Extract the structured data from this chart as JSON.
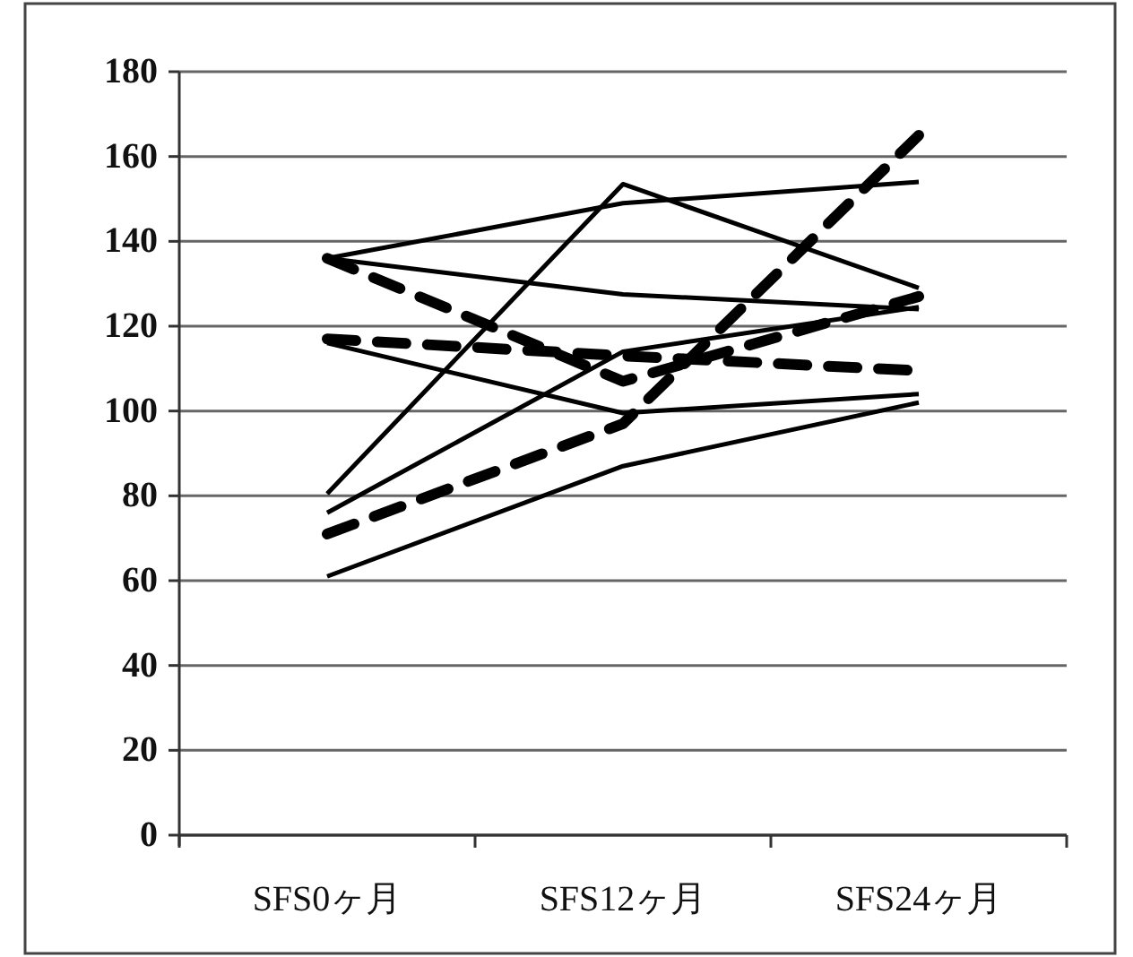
{
  "chart_data": {
    "type": "line",
    "categories": [
      "SFS0ヶ月",
      "SFS12ヶ月",
      "SFS24ヶ月"
    ],
    "ylim": [
      0,
      180
    ],
    "yticks": [
      0,
      20,
      40,
      60,
      80,
      100,
      120,
      140,
      160,
      180
    ],
    "grid": "y",
    "marker": "none",
    "series": [
      {
        "color": "#000000",
        "line_style": "solid",
        "values": [
          136,
          149,
          154
        ]
      },
      {
        "color": "#000000",
        "line_style": "solid",
        "values": [
          136,
          127.5,
          124
        ]
      },
      {
        "color": "#000000",
        "line_style": "solid",
        "values": [
          116,
          99.5,
          104
        ]
      },
      {
        "color": "#000000",
        "line_style": "solid",
        "values": [
          80.5,
          153.5,
          129
        ]
      },
      {
        "color": "#000000",
        "line_style": "solid",
        "values": [
          76,
          114,
          124.5
        ]
      },
      {
        "color": "#000000",
        "line_style": "solid",
        "values": [
          61,
          87,
          102
        ]
      },
      {
        "color": "#000000",
        "line_style": "dashed",
        "values": [
          136,
          107,
          127
        ]
      },
      {
        "color": "#000000",
        "line_style": "dashed",
        "values": [
          117,
          113,
          109.5
        ]
      },
      {
        "color": "#000000",
        "line_style": "dashed",
        "values": [
          71,
          97,
          165
        ]
      }
    ]
  }
}
